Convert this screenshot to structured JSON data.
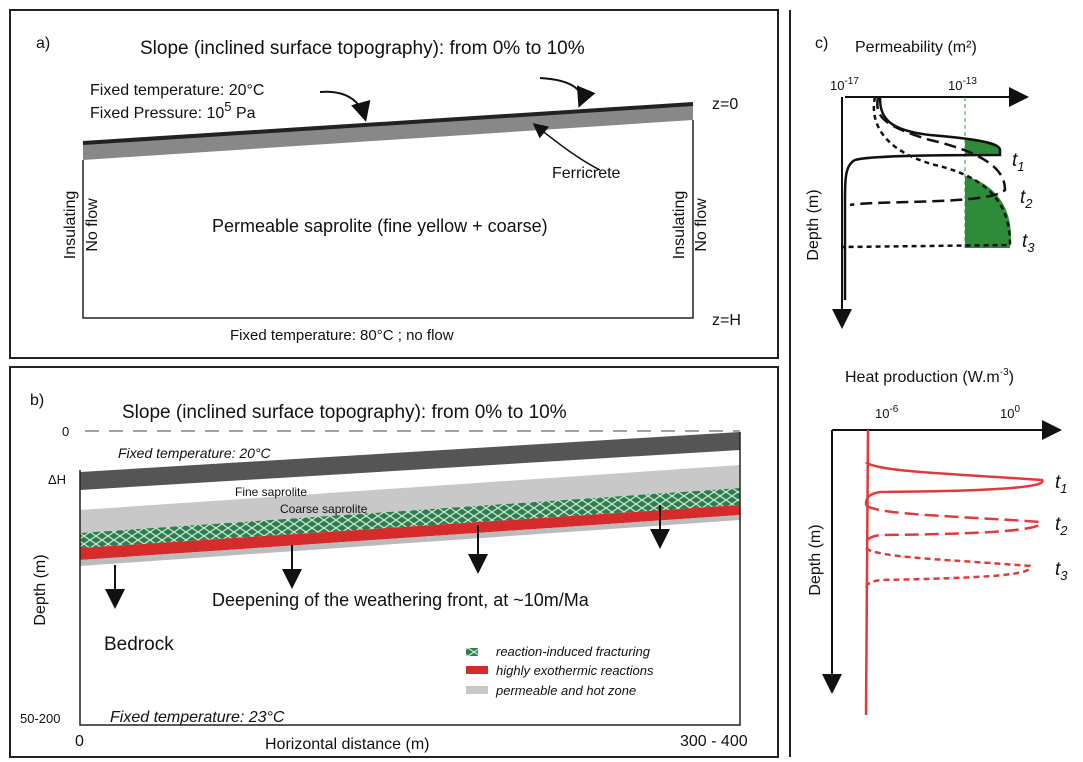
{
  "panel_a": {
    "label": "a)",
    "slope": "Slope  (inclined surface topography): from 0% to 10%",
    "fixed_temperature": "Fixed temperature: 20°C",
    "fixed_pressure": {
      "text": "Fixed Pressure: 10",
      "exp": "5",
      "unit": " Pa"
    },
    "z0": "z=0",
    "ferricrete": "Ferricrete",
    "left_boundary": [
      "Insulating",
      "No flow"
    ],
    "right_boundary": [
      "Insulating",
      "No flow"
    ],
    "body": "Permeable saprolite (fine yellow + coarse)",
    "zh": "z=H",
    "bottom": "Fixed temperature: 80°C ; no flow"
  },
  "panel_b": {
    "label": "b)",
    "slope": "Slope  (inclined surface topography): from 0% to 10%",
    "zero": "0",
    "fixed_temperature_top": "Fixed temperature: 20°C",
    "delta_h": "ΔH",
    "fine": "Fine saprolite",
    "coarse": "Coarse saprolite",
    "depth_label": "Depth  (m)",
    "deepening": "Deepening of the weathering front, at ~10m/Ma",
    "bedrock": "Bedrock",
    "legend": [
      "reaction-induced fracturing",
      "highly exothermic reactions",
      "permeable and hot zone"
    ],
    "depth_range": "50-200",
    "fixed_temperature_bottom": "Fixed temperature: 23°C",
    "x_start": "0",
    "x_label": "Horizontal distance  (m)",
    "x_end": "300 - 400"
  },
  "panel_c": {
    "label": "c)",
    "permeability": {
      "title": "Permeability  (m²)",
      "low": {
        "base": "10",
        "exp": "-17"
      },
      "high": {
        "base": "10",
        "exp": "-13"
      },
      "depth_label": "Depth  (m)",
      "times": [
        {
          "t": "t",
          "sub": "1"
        },
        {
          "t": "t",
          "sub": "2"
        },
        {
          "t": "t",
          "sub": "3"
        }
      ]
    },
    "heat": {
      "title": {
        "text": "Heat production (W.m",
        "exp": "-3",
        "end": ")"
      },
      "low": {
        "base": "10",
        "exp": "-6"
      },
      "high": {
        "base": "10",
        "exp": "0"
      },
      "depth_label": "Depth  (m)",
      "times": [
        {
          "t": "t",
          "sub": "1"
        },
        {
          "t": "t",
          "sub": "2"
        },
        {
          "t": "t",
          "sub": "3"
        }
      ]
    }
  }
}
